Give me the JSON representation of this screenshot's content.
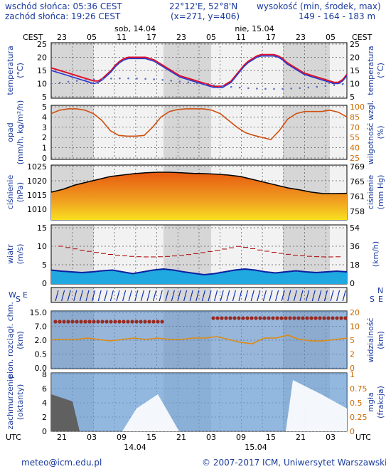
{
  "header": {
    "sunrise": "wschód słońca: 05:36 CEST",
    "sunset": "zachód słońca: 19:26 CEST",
    "coords": "22°12'E, 52°8'N",
    "grid": "(x=271, y=406)",
    "altitude_label": "wysokość (min, środek, max)",
    "altitude_values": "149 - 164 - 183 m"
  },
  "time_axis": {
    "top_left_tz": "CEST",
    "top_right_tz": "CEST",
    "bottom_left_tz": "UTC",
    "bottom_right_tz": "UTC",
    "top_hours": [
      "23",
      "05",
      "11",
      "17",
      "23",
      "05",
      "11",
      "17",
      "23",
      "05"
    ],
    "bottom_hours": [
      "21",
      "03",
      "09",
      "15",
      "21",
      "03",
      "09",
      "15",
      "21",
      "03"
    ],
    "day_labels_top": [
      "sob, 14.04",
      "nie, 15.04"
    ],
    "day_labels_bottom": [
      "14.04",
      "15.04"
    ]
  },
  "panels": {
    "temperature": {
      "left_label": "temperatura",
      "left_unit": "(°C)",
      "right_label": "temperatura",
      "right_unit": "(°C)",
      "ticks": [
        "25",
        "20",
        "15",
        "10",
        "5"
      ]
    },
    "precip": {
      "left_label": "opad",
      "left_unit": "(mm/h, kg/m²/h)",
      "right_label": "wilgotność wzgl.",
      "right_unit": "(%)",
      "left_ticks": [
        "5",
        "4",
        "3",
        "2",
        "1",
        "0"
      ],
      "right_ticks": [
        "100",
        "85",
        "70",
        "55",
        "40",
        "25"
      ]
    },
    "pressure": {
      "left_label": "ciśnienie",
      "left_unit": "(hPa)",
      "right_label": "ciśnienie",
      "right_unit": "(mm Hg)",
      "left_ticks": [
        "1025",
        "1020",
        "1015",
        "1010"
      ],
      "right_ticks": [
        "769",
        "765",
        "761",
        "758"
      ]
    },
    "wind": {
      "left_label": "wiatr",
      "left_unit": "(m/s)",
      "right_label": "",
      "right_unit": "(km/h)",
      "left_ticks": [
        "15",
        "10",
        "5",
        "0"
      ],
      "right_ticks": [
        "54",
        "36",
        "18",
        "0"
      ]
    },
    "winddir": {
      "left_compass": "W",
      "left_compass2": "S",
      "left_compass3": "E",
      "right_compass": "N",
      "right_compass2": "S",
      "right_compass3": "E"
    },
    "cloudbase": {
      "left_label": "pion. rozciągł. chm.",
      "left_unit": "(km)",
      "right_label": "widzialność",
      "right_unit": "(km)",
      "left_ticks": [
        "15.0",
        "7.0",
        "2.0",
        "0.5",
        "0.0"
      ],
      "right_ticks": [
        "20",
        "10",
        "5",
        "2",
        "0"
      ]
    },
    "clouds": {
      "left_label": "zachmurzenie",
      "left_unit": "(oktanty)",
      "right_label": "mgła",
      "right_unit": "(frakcja)",
      "left_ticks": [
        "8",
        "6",
        "4",
        "2",
        "0"
      ],
      "right_ticks": [
        "1",
        "0.75",
        "0.5",
        "0.25",
        "0"
      ]
    }
  },
  "footer": {
    "email": "meteo@icm.edu.pl",
    "copyright": "© 2007-2017 ICM, Uniwersytet Warszawski"
  },
  "colors": {
    "label_blue": "#1a3a9e",
    "temp_red": "#e0102a",
    "temp_blue": "#2a3ad0",
    "humidity_orange": "#d05010",
    "pressure_fill": "#f0b020",
    "night_gray": "#d8d8d8"
  },
  "chart_data": [
    {
      "type": "line",
      "title": "",
      "xlabel": "",
      "ylabel": "temperatura (°C)",
      "ylim": [
        5,
        25
      ],
      "x": [
        0,
        1,
        2,
        3,
        4,
        5,
        6,
        7,
        8,
        9,
        10,
        11,
        12,
        13,
        14,
        15,
        16,
        17,
        18,
        19,
        20,
        21,
        22,
        23,
        24,
        25,
        26,
        27,
        28,
        29,
        30,
        31,
        32,
        33,
        34,
        35,
        36,
        37,
        38,
        39,
        40,
        41,
        42,
        43,
        44,
        45,
        46,
        47,
        48,
        49,
        50,
        51,
        52,
        53,
        54,
        55,
        56,
        57,
        58,
        59,
        60,
        61,
        62,
        63,
        64,
        65,
        66,
        67,
        68,
        69
      ],
      "series": [
        {
          "values": [
            16,
            15.5,
            15,
            14.5,
            14,
            13.5,
            13,
            12.5,
            12,
            11.5,
            11,
            11,
            12,
            13.5,
            15,
            17,
            18.5,
            19.5,
            20,
            20,
            20,
            20,
            20,
            19.5,
            19,
            18,
            17,
            16,
            15,
            14,
            13,
            12.5,
            12,
            11.5,
            11,
            10.5,
            10,
            9.5,
            9,
            9,
            9,
            10,
            11,
            13,
            15,
            17,
            18.5,
            19.5,
            20.5,
            21,
            21,
            21,
            21,
            20.5,
            19.5,
            18,
            17,
            16,
            15,
            14,
            13.5,
            13,
            12.5,
            12,
            11.5,
            11,
            10.5,
            10.5,
            11.5,
            13.5
          ]
        },
        {
          "values": [
            15,
            14.5,
            14,
            13.5,
            13,
            12.5,
            12,
            11.5,
            11,
            10.5,
            10,
            10.5,
            11.5,
            13,
            14.5,
            16.5,
            18,
            19,
            19.5,
            19.5,
            19.5,
            19.5,
            19.5,
            19,
            18.5,
            17.5,
            16.5,
            15.5,
            14.5,
            13.5,
            12.5,
            12,
            11.5,
            11,
            10.5,
            10,
            9.5,
            9,
            8.5,
            8.5,
            8.5,
            9.5,
            10.5,
            12.5,
            14.5,
            16.5,
            18,
            19,
            20,
            20.5,
            20.5,
            20.5,
            20.5,
            20,
            19,
            17.5,
            16.5,
            15.5,
            14.5,
            13.5,
            13,
            12.5,
            12,
            11.5,
            11,
            10.5,
            10,
            10,
            11,
            13
          ]
        }
      ]
    }
  ]
}
